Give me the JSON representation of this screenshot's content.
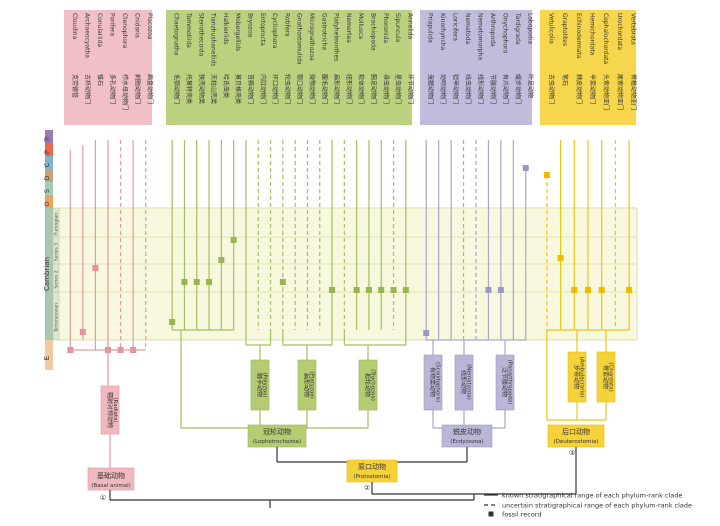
{
  "colors": {
    "basal": "#f0b9c0",
    "basal_dark": "#e8909c",
    "basal_line": "#e59aa4",
    "loph": "#b5cc72",
    "loph_dark": "#98b552",
    "loph_line": "#a3bf5e",
    "ecdy": "#b9b6d8",
    "ecdy_dark": "#9c98c6",
    "ecdy_line": "#aaa6cf",
    "deut": "#f5d23a",
    "deut_dark": "#e9bd00",
    "deut_line": "#f0c415",
    "band_fill": "#f7f8dd",
    "band_line": "#d9dca8",
    "period_O": "#f0a25a",
    "period_S": "#9fd0b0",
    "period_D": "#c9a37a",
    "period_C": "#7fb3c8",
    "period_P": "#e9674a",
    "period_Tr": "#9b7ab6",
    "period_E": "#f3c9a0",
    "period_Cambrian": "#a8c7ad"
  },
  "periods": [
    "Tr",
    "P",
    "C",
    "D",
    "S",
    "O"
  ],
  "period_E": "E",
  "cambrian_label": "Cambrian",
  "stages": [
    "Furongian",
    "Series 3",
    "Series 2",
    "Terreneuvian"
  ],
  "basal_phyla": [
    {
      "en": "Cloudina",
      "zh": "克劳德管"
    },
    {
      "en": "Archaeocyatha",
      "zh": "古杯动物门"
    },
    {
      "en": "Conulariida",
      "zh": "锥石"
    },
    {
      "en": "Porifera",
      "zh": "多孔动物门"
    },
    {
      "en": "Ctenophora",
      "zh": "栉水母动物门"
    },
    {
      "en": "Cnidaria",
      "zh": "刺胞动物门"
    },
    {
      "en": "Placozoa",
      "zh": "扁盘动物门"
    }
  ],
  "loph_phyla": [
    {
      "en": "Chaetognatha",
      "zh": "毛颚动物门"
    },
    {
      "en": "Tommotiida",
      "zh": "托莫特壳类"
    },
    {
      "en": "Stenothecoida",
      "zh": "狭壳动物类"
    },
    {
      "en": "Tianzhushanellids",
      "zh": "天柱山壳类"
    },
    {
      "en": "Halkieriids",
      "zh": "哈氏虫类"
    },
    {
      "en": "Mobergellids",
      "zh": "莫贝格壳类"
    },
    {
      "en": "Bryozoa",
      "zh": "苔藓动物门"
    },
    {
      "en": "Entoprocta",
      "zh": "内肛动物门"
    },
    {
      "en": "Cycliophora",
      "zh": "环口动物门"
    },
    {
      "en": "Rotifera",
      "zh": "轮虫动物门"
    },
    {
      "en": "Gnathostomulida",
      "zh": "颚口动物门"
    },
    {
      "en": "Micrognathozoa",
      "zh": "微颚动物门"
    },
    {
      "en": "Gastrotricha",
      "zh": "腹毛动物门"
    },
    {
      "en": "Platyhelminthes",
      "zh": "扁形动物门"
    },
    {
      "en": "Nemertea",
      "zh": "纽形动物门"
    },
    {
      "en": "Mollusca",
      "zh": "软体动物门"
    },
    {
      "en": "Brachiopoda",
      "zh": "腕足动物门"
    },
    {
      "en": "Phoronida",
      "zh": "帚虫动物门"
    },
    {
      "en": "Sipuncula",
      "zh": "星虫动物门"
    },
    {
      "en": "Annelida",
      "zh": "环节动物门"
    }
  ],
  "ecdy_phyla": [
    {
      "en": "Priapulida",
      "zh": "曳鳃动物门"
    },
    {
      "en": "Kinorhyncha",
      "zh": "动吻动物门"
    },
    {
      "en": "Loricifera",
      "zh": "铠甲动物门"
    },
    {
      "en": "Nematoda",
      "zh": "线虫动物门"
    },
    {
      "en": "Nematomorpha",
      "zh": "线形动物门"
    },
    {
      "en": "Arthropoda",
      "zh": "节肢动物门"
    },
    {
      "en": "Onychophora",
      "zh": "有爪动物门"
    },
    {
      "en": "Tardigrada",
      "zh": "缓步动物门"
    },
    {
      "en": "Lobopodia",
      "zh": "叶足动物"
    }
  ],
  "deut_phyla": [
    {
      "en": "Vetulicolia",
      "zh": "古虫动物门"
    },
    {
      "en": "Graptolites",
      "zh": "笔石"
    },
    {
      "en": "Echinodermata",
      "zh": "棘皮动物门"
    },
    {
      "en": "Hemichordata",
      "zh": "半索动物门"
    },
    {
      "en": "Cephalochordata",
      "zh": "头索动物亚门"
    },
    {
      "en": "Urochordata",
      "zh": "尾索动物亚门"
    },
    {
      "en": "Vertebrata",
      "zh": "脊椎动物亚门"
    }
  ],
  "subclades": {
    "radiata": {
      "zh": "辐射对称动物",
      "en": "(Radiata)"
    },
    "polyzoa": {
      "zh": "触手动物",
      "en": "(Polyzoa)"
    },
    "platyzoa": {
      "zh": "扁形动物",
      "en": "(Platyzoa)"
    },
    "trochozoa": {
      "zh": "担轮动物",
      "en": "(Trochozoa)"
    },
    "scalidophora": {
      "zh": "有吻类动物",
      "en": "(Scalidophora)"
    },
    "nematozoa": {
      "zh": "线形动物",
      "en": "(Nematozoa)"
    },
    "panarthropoda": {
      "zh": "泛节肢动物",
      "en": "(Panarthropoda)"
    },
    "ambulacraria": {
      "zh": "步带动物",
      "en": "(Ambulacraria)"
    },
    "chordata": {
      "zh": "脊索动物",
      "en": "(Chordata)"
    }
  },
  "clades": {
    "lophotrochozoa": {
      "zh": "冠轮动物",
      "en": "(Lophotrochozoa)"
    },
    "ecdysozoa": {
      "zh": "蜕皮动物",
      "en": "(Ecdysozoa)"
    },
    "deuterostomia": {
      "zh": "后口动物",
      "en": "(Deuterostomia)"
    },
    "protostomia": {
      "zh": "原口动物",
      "en": "(Protostomia)"
    },
    "basal": {
      "zh": "基础动物",
      "en": "(Basal animal)"
    }
  },
  "numbers": {
    "basal": "①",
    "protostomia": "②",
    "deuterostomia": "③"
  },
  "legend": {
    "known": "known stratigraphical range of each phylum-rank clade",
    "uncertain": "uncertain stratigraphical range of each phylum-rank clade",
    "fossil": "fossil record"
  }
}
